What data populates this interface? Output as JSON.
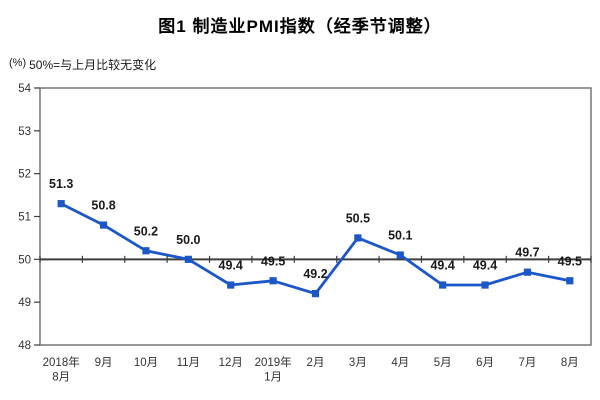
{
  "page": {
    "title": "图1  制造业PMI指数（经季节调整）",
    "unit_label": "(%)",
    "note": "50%=与上月比较无变化"
  },
  "chart_data": {
    "type": "line",
    "title": "图1  制造业PMI指数（经季节调整）",
    "unit": "%",
    "note": "50%=与上月比较无变化",
    "categories": [
      [
        "2018年",
        "8月"
      ],
      [
        "9月"
      ],
      [
        "10月"
      ],
      [
        "11月"
      ],
      [
        "12月"
      ],
      [
        "2019年",
        "1月"
      ],
      [
        "2月"
      ],
      [
        "3月"
      ],
      [
        "4月"
      ],
      [
        "5月"
      ],
      [
        "6月"
      ],
      [
        "7月"
      ],
      [
        "8月"
      ]
    ],
    "series": [
      {
        "name": "制造业PMI指数",
        "values": [
          51.3,
          50.8,
          50.2,
          50.0,
          49.4,
          49.5,
          49.2,
          50.5,
          50.1,
          49.4,
          49.4,
          49.7,
          49.5
        ],
        "data_labels": [
          "51.3",
          "50.8",
          "50.2",
          "50.0",
          "49.4",
          "49.5",
          "49.2",
          "50.5",
          "50.1",
          "49.4",
          "49.4",
          "49.7",
          "49.5"
        ]
      }
    ],
    "ylim": [
      48,
      54
    ],
    "ytick_step": 1,
    "ytick_labels": [
      "48",
      "49",
      "50",
      "51",
      "52",
      "53",
      "54"
    ],
    "reference_line": 50,
    "grid": false,
    "legend": "none",
    "marker": "square",
    "colors": {
      "line": "#1C57C8",
      "marker": "#1C57C8",
      "reference_line": "#3d3d3d",
      "frame": "#6b6b6b",
      "data_label": "#1a1a1a",
      "axis_text": "#333333"
    }
  }
}
